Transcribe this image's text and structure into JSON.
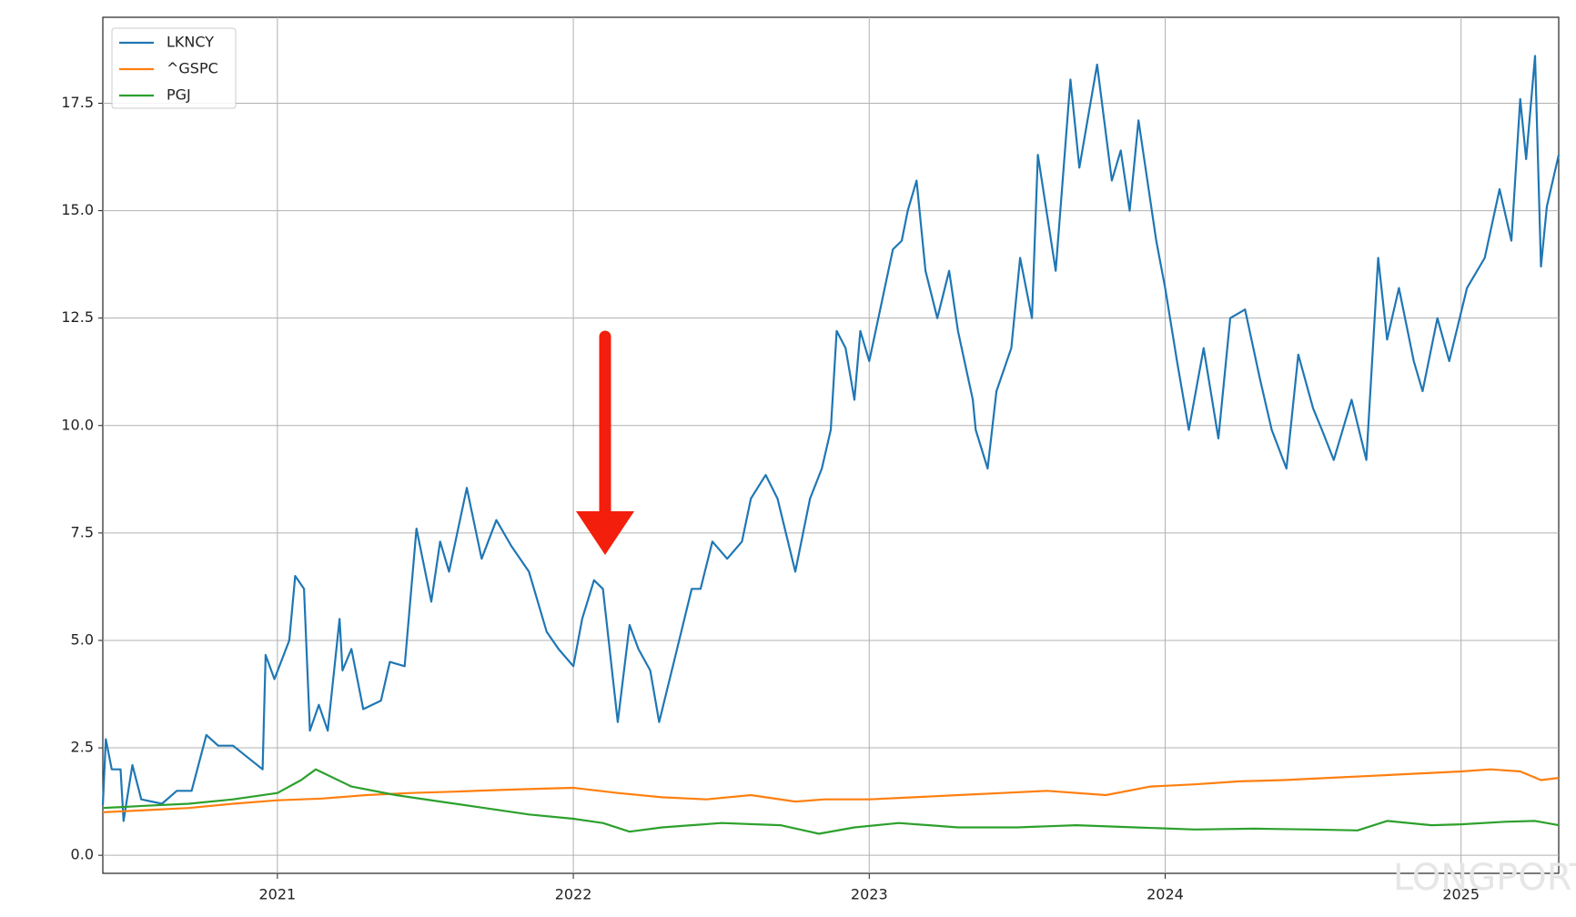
{
  "chart_data": {
    "type": "line",
    "watermark": "LONGPORT",
    "xlim": [
      2020.41,
      2025.33
    ],
    "xticks": [
      2021,
      2022,
      2023,
      2024,
      2025
    ],
    "ylim": [
      -0.42,
      19.5
    ],
    "yticks": [
      {
        "value": 0,
        "label": "0.0"
      },
      2.5,
      {
        "value": 5,
        "label": "5.0"
      },
      7.5,
      {
        "value": 10,
        "label": "10.0"
      },
      12.5,
      {
        "value": 15,
        "label": "15.0"
      },
      17.5
    ],
    "grid": true,
    "legend": "upper left",
    "series": [
      {
        "name": "LKNCY",
        "color": "#1f77b4",
        "x": [
          2020.41,
          2020.42,
          2020.44,
          2020.47,
          2020.48,
          2020.51,
          2020.54,
          2020.61,
          2020.66,
          2020.71,
          2020.76,
          2020.8,
          2020.85,
          2020.95,
          2020.96,
          2020.99,
          2021.04,
          2021.06,
          2021.09,
          2021.11,
          2021.14,
          2021.17,
          2021.21,
          2021.22,
          2021.25,
          2021.29,
          2021.35,
          2021.38,
          2021.43,
          2021.47,
          2021.52,
          2021.55,
          2021.58,
          2021.64,
          2021.69,
          2021.74,
          2021.79,
          2021.85,
          2021.91,
          2021.95,
          2022.0,
          2022.03,
          2022.07,
          2022.1,
          2022.15,
          2022.19,
          2022.22,
          2022.26,
          2022.29,
          2022.34,
          2022.4,
          2022.43,
          2022.47,
          2022.52,
          2022.57,
          2022.6,
          2022.65,
          2022.69,
          2022.75,
          2022.8,
          2022.84,
          2022.87,
          2022.89,
          2022.92,
          2022.95,
          2022.97,
          2023.0,
          2023.08,
          2023.11,
          2023.13,
          2023.16,
          2023.19,
          2023.23,
          2023.27,
          2023.3,
          2023.35,
          2023.36,
          2023.4,
          2023.43,
          2023.48,
          2023.51,
          2023.55,
          2023.57,
          2023.63,
          2023.68,
          2023.71,
          2023.77,
          2023.82,
          2023.85,
          2023.88,
          2023.91,
          2023.97,
          2024.0,
          2024.04,
          2024.08,
          2024.13,
          2024.18,
          2024.22,
          2024.27,
          2024.32,
          2024.36,
          2024.41,
          2024.45,
          2024.5,
          2024.53,
          2024.57,
          2024.63,
          2024.68,
          2024.72,
          2024.75,
          2024.79,
          2024.84,
          2024.87,
          2024.92,
          2024.96,
          2025.02,
          2025.08,
          2025.13,
          2025.17,
          2025.2,
          2025.22,
          2025.25,
          2025.27,
          2025.29,
          2025.33
        ],
        "values": [
          1.17,
          2.7,
          2.0,
          2.0,
          0.8,
          2.1,
          1.3,
          1.2,
          1.5,
          1.5,
          2.8,
          2.55,
          2.55,
          2.0,
          4.66,
          4.1,
          5.0,
          6.5,
          6.2,
          2.9,
          3.5,
          2.9,
          5.5,
          4.3,
          4.8,
          3.4,
          3.6,
          4.5,
          4.4,
          7.6,
          5.9,
          7.3,
          6.6,
          8.55,
          6.9,
          7.8,
          7.2,
          6.6,
          5.2,
          4.8,
          4.4,
          5.5,
          6.4,
          6.2,
          3.1,
          5.36,
          4.8,
          4.3,
          3.1,
          4.5,
          6.2,
          6.2,
          7.3,
          6.9,
          7.3,
          8.3,
          8.85,
          8.3,
          6.6,
          8.3,
          9.0,
          9.9,
          12.2,
          11.8,
          10.6,
          12.2,
          11.5,
          14.1,
          14.3,
          15.0,
          15.7,
          13.6,
          12.5,
          13.6,
          12.2,
          10.6,
          9.9,
          9.0,
          10.8,
          11.8,
          13.9,
          12.5,
          16.3,
          13.6,
          18.05,
          16.0,
          18.4,
          15.7,
          16.4,
          15.0,
          17.1,
          14.3,
          13.2,
          11.5,
          9.9,
          11.8,
          9.7,
          12.5,
          12.7,
          11.1,
          9.9,
          9.0,
          11.65,
          10.4,
          9.9,
          9.2,
          10.6,
          9.2,
          13.9,
          12.0,
          13.2,
          11.5,
          10.8,
          12.5,
          11.5,
          13.2,
          13.9,
          15.5,
          14.3,
          17.6,
          16.2,
          18.6,
          13.7,
          15.1,
          16.3
        ]
      },
      {
        "name": "^GSPC",
        "color": "#ff7f0e",
        "x": [
          2020.41,
          2020.55,
          2020.7,
          2020.85,
          2021.0,
          2021.15,
          2021.3,
          2021.45,
          2021.6,
          2021.75,
          2021.9,
          2022.0,
          2022.15,
          2022.3,
          2022.45,
          2022.6,
          2022.75,
          2022.85,
          2023.0,
          2023.15,
          2023.3,
          2023.45,
          2023.6,
          2023.8,
          2023.95,
          2024.1,
          2024.25,
          2024.4,
          2024.55,
          2024.7,
          2024.85,
          2025.0,
          2025.1,
          2025.2,
          2025.27,
          2025.33
        ],
        "values": [
          1.0,
          1.05,
          1.1,
          1.2,
          1.28,
          1.32,
          1.4,
          1.45,
          1.48,
          1.52,
          1.55,
          1.57,
          1.45,
          1.35,
          1.3,
          1.4,
          1.25,
          1.3,
          1.3,
          1.35,
          1.4,
          1.45,
          1.5,
          1.4,
          1.6,
          1.65,
          1.72,
          1.75,
          1.8,
          1.85,
          1.9,
          1.95,
          2.0,
          1.95,
          1.75,
          1.8
        ]
      },
      {
        "name": "PGJ",
        "color": "#2ca02c",
        "x": [
          2020.41,
          2020.55,
          2020.7,
          2020.85,
          2021.0,
          2021.08,
          2021.13,
          2021.25,
          2021.4,
          2021.55,
          2021.7,
          2021.85,
          2022.0,
          2022.1,
          2022.19,
          2022.3,
          2022.5,
          2022.7,
          2022.83,
          2022.95,
          2023.1,
          2023.3,
          2023.5,
          2023.7,
          2023.9,
          2024.1,
          2024.3,
          2024.5,
          2024.65,
          2024.75,
          2024.9,
          2025.0,
          2025.15,
          2025.25,
          2025.33
        ],
        "values": [
          1.1,
          1.15,
          1.2,
          1.3,
          1.45,
          1.75,
          2.0,
          1.6,
          1.4,
          1.25,
          1.1,
          0.95,
          0.85,
          0.75,
          0.55,
          0.65,
          0.75,
          0.7,
          0.5,
          0.65,
          0.75,
          0.65,
          0.65,
          0.7,
          0.65,
          0.6,
          0.62,
          0.6,
          0.58,
          0.8,
          0.7,
          0.72,
          0.78,
          0.8,
          0.7
        ]
      }
    ]
  }
}
